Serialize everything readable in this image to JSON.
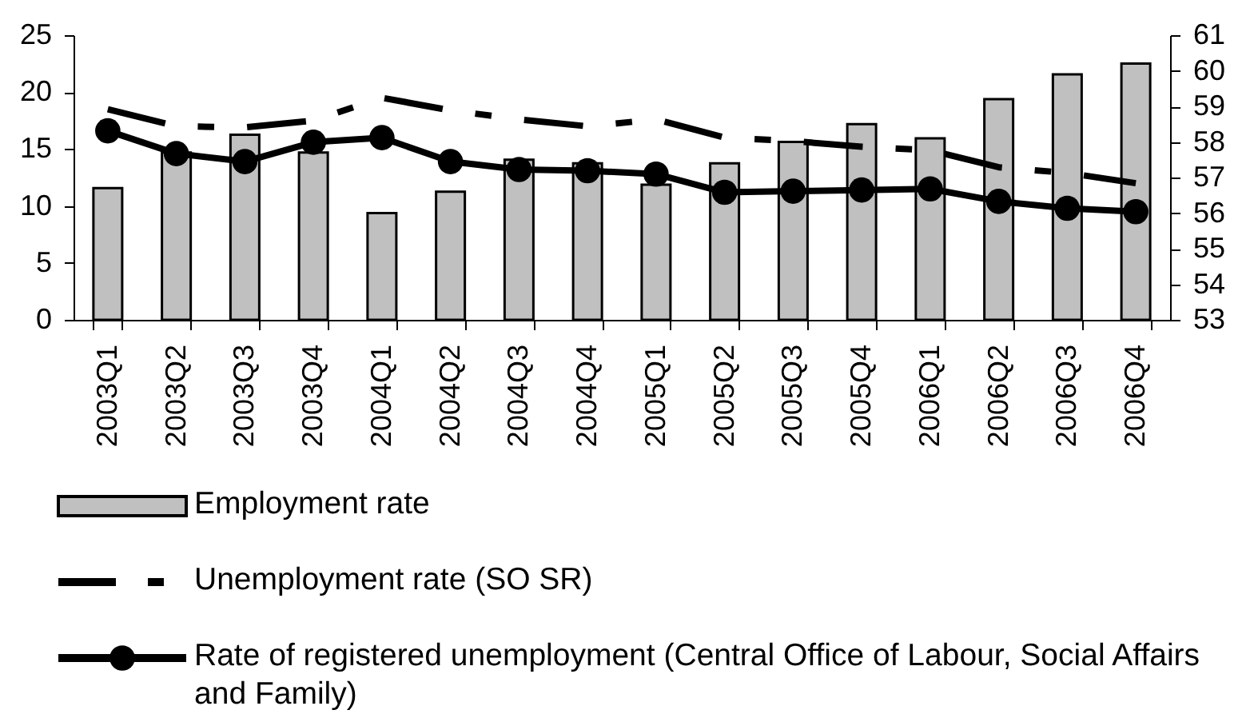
{
  "chart_data": {
    "type": "bar",
    "categories": [
      "2003Q1",
      "2003Q2",
      "2003Q3",
      "2003Q4",
      "2004Q1",
      "2004Q2",
      "2004Q3",
      "2004Q4",
      "2005Q1",
      "2005Q2",
      "2005Q3",
      "2005Q4",
      "2006Q1",
      "2006Q2",
      "2006Q3",
      "2006Q4"
    ],
    "series": [
      {
        "name": "Employment rate",
        "axis": "y2",
        "color": "#c0c0c0",
        "values": [
          56.7,
          57.7,
          58.2,
          57.7,
          56.0,
          56.6,
          57.5,
          57.4,
          56.8,
          57.4,
          58.0,
          58.5,
          58.1,
          59.2,
          59.9,
          60.2
        ]
      },
      {
        "name": "Unemployment rate (SO SR)",
        "type": "line",
        "color": "#000000",
        "line_style": "dashed",
        "values": [
          18.5,
          17.0,
          16.9,
          17.5,
          19.5,
          18.4,
          17.6,
          17.0,
          17.6,
          16.0,
          15.7,
          15.2,
          14.9,
          13.4,
          12.9,
          12.0
        ]
      },
      {
        "name": "Rate of registered unemployment (Central Office of Labour, Social Affairs and Family)",
        "type": "line",
        "color": "#000000",
        "marker": "circle",
        "values": [
          16.6,
          14.6,
          13.9,
          15.6,
          16.0,
          13.9,
          13.2,
          13.1,
          12.8,
          11.2,
          11.3,
          11.4,
          11.5,
          10.4,
          9.8,
          9.5
        ]
      }
    ],
    "ylim": [
      0,
      25
    ],
    "yticks": [
      0,
      5,
      10,
      15,
      20,
      25
    ],
    "y2lim": [
      53,
      61
    ],
    "y2ticks": [
      53,
      54,
      55,
      56,
      57,
      58,
      59,
      60,
      61
    ],
    "legend": "bottom"
  }
}
